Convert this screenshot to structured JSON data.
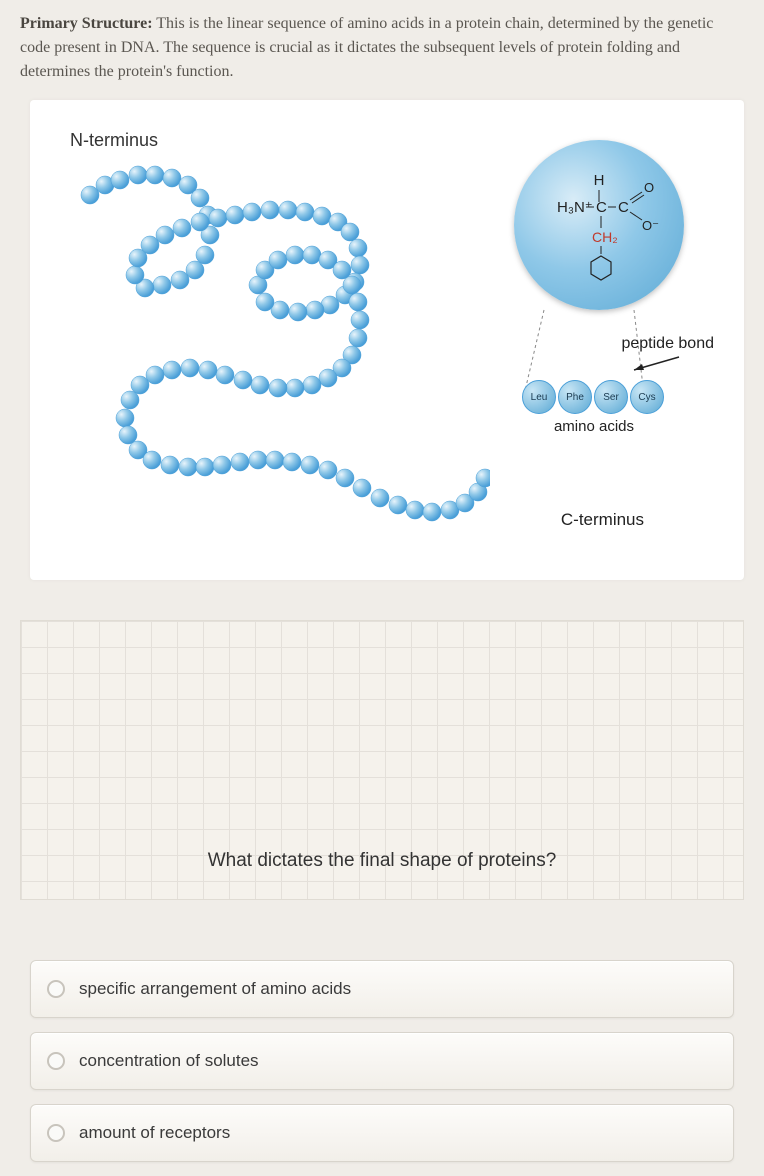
{
  "header": {
    "prefix": "Primary Structure:",
    "body": "This is the linear sequence of amino acids in a protein chain, determined by the genetic code present in DNA. The sequence is crucial as it dictates the subsequent levels of protein folding and determines the protein's function."
  },
  "diagram": {
    "n_terminus": "N-terminus",
    "c_terminus": "C-terminus",
    "peptide_bond": "peptide bond",
    "amino_acids_label": "amino acids",
    "aa_beads": [
      "Leu",
      "Phe",
      "Ser",
      "Cys"
    ],
    "formula": {
      "line1_left": "H₃N⁺—",
      "line1_mid": "C",
      "line1_right": "—C",
      "h_top": "H",
      "ch2": "CH₂",
      "o_double": "O",
      "o_minus": "O⁻"
    },
    "bead_color_light": "#c8e6f5",
    "bead_color_dark": "#5aa8d4",
    "bead_stroke": "#4a9fd8"
  },
  "question": "What dictates the final shape of proteins?",
  "options": [
    "specific arrangement of amino acids",
    "concentration of solutes",
    "amount of receptors"
  ]
}
